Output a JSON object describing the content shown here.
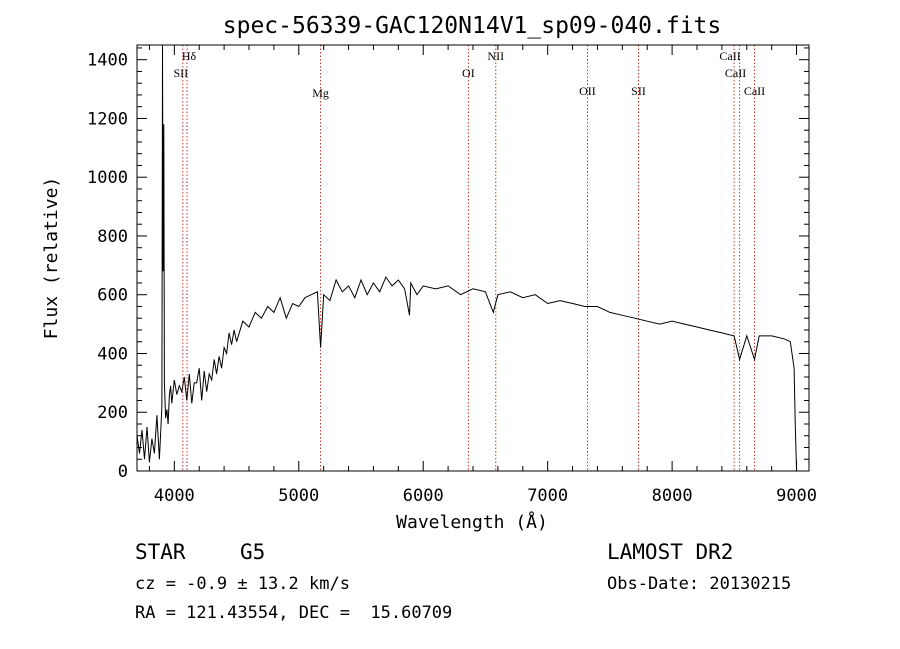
{
  "chart_data": {
    "type": "line",
    "title": "spec-56339-GAC120N14V1_sp09-040.fits",
    "xlabel": "Wavelength (Å)",
    "ylabel": "Flux (relative)",
    "xlim": [
      3700,
      9100
    ],
    "ylim": [
      0,
      1450
    ],
    "x_ticks": [
      4000,
      5000,
      6000,
      7000,
      8000,
      9000
    ],
    "x_tick_labels": [
      "4000",
      "5000",
      "6000",
      "7000",
      "8000",
      "9000"
    ],
    "y_ticks": [
      0,
      200,
      400,
      600,
      800,
      1000,
      1200,
      1400
    ],
    "y_tick_labels": [
      "0",
      "200",
      "400",
      "600",
      "800",
      "1000",
      "1200",
      "1400"
    ],
    "grid": false,
    "series": [
      {
        "x": [
          3700,
          3720,
          3740,
          3760,
          3780,
          3800,
          3820,
          3840,
          3860,
          3880,
          3900,
          3905,
          3910,
          3915,
          3920,
          3930,
          3940,
          3950,
          3960,
          3970,
          3980,
          4000,
          4020,
          4040,
          4060,
          4080,
          4100,
          4120,
          4140,
          4160,
          4180,
          4200,
          4220,
          4240,
          4260,
          4280,
          4300,
          4320,
          4340,
          4360,
          4380,
          4400,
          4420,
          4440,
          4460,
          4480,
          4500,
          4550,
          4600,
          4650,
          4700,
          4750,
          4800,
          4850,
          4900,
          4950,
          5000,
          5050,
          5100,
          5150,
          5175,
          5200,
          5250,
          5300,
          5350,
          5400,
          5450,
          5500,
          5550,
          5600,
          5650,
          5700,
          5750,
          5800,
          5850,
          5890,
          5900,
          5950,
          6000,
          6100,
          6200,
          6300,
          6400,
          6500,
          6563,
          6600,
          6700,
          6800,
          6900,
          7000,
          7100,
          7200,
          7300,
          7400,
          7500,
          7600,
          7700,
          7800,
          7900,
          8000,
          8100,
          8200,
          8300,
          8400,
          8498,
          8542,
          8600,
          8662,
          8700,
          8800,
          8900,
          8950,
          8980,
          8990,
          9000
        ],
        "y": [
          120,
          60,
          140,
          40,
          150,
          30,
          110,
          60,
          190,
          40,
          220,
          1450,
          680,
          1180,
          300,
          180,
          210,
          160,
          260,
          290,
          230,
          310,
          260,
          290,
          270,
          320,
          240,
          330,
          230,
          300,
          300,
          350,
          240,
          340,
          270,
          330,
          310,
          380,
          330,
          390,
          350,
          420,
          400,
          470,
          430,
          480,
          440,
          510,
          490,
          540,
          520,
          560,
          540,
          590,
          520,
          570,
          560,
          590,
          600,
          610,
          420,
          600,
          580,
          650,
          610,
          630,
          590,
          650,
          600,
          640,
          610,
          660,
          630,
          650,
          620,
          530,
          640,
          600,
          630,
          620,
          630,
          600,
          620,
          610,
          540,
          600,
          610,
          590,
          600,
          570,
          580,
          570,
          560,
          560,
          540,
          530,
          520,
          510,
          500,
          510,
          500,
          490,
          480,
          470,
          460,
          380,
          460,
          380,
          460,
          460,
          450,
          440,
          350,
          150,
          0
        ]
      }
    ],
    "annotations": [
      {
        "label": "Hδ",
        "x": 4102
      },
      {
        "label": "SII",
        "x": 4068
      },
      {
        "label": "Mg",
        "x": 5175
      },
      {
        "label": "OI",
        "x": 6363
      },
      {
        "label": "NII",
        "x": 6583
      },
      {
        "label": "OII",
        "x": 7320
      },
      {
        "label": "SII",
        "x": 7730
      },
      {
        "label": "CaII",
        "x": 8498
      },
      {
        "label": "CaII",
        "x": 8542
      },
      {
        "label": "CaII",
        "x": 8662
      }
    ]
  },
  "info": {
    "object_class": "STAR",
    "subclass": "G5",
    "survey": "LAMOST DR2",
    "cz": "cz = -0.9 ± 13.2 km/s",
    "obs_date": "Obs-Date: 20130215",
    "coords": "RA = 121.43554, DEC =  15.60709"
  }
}
